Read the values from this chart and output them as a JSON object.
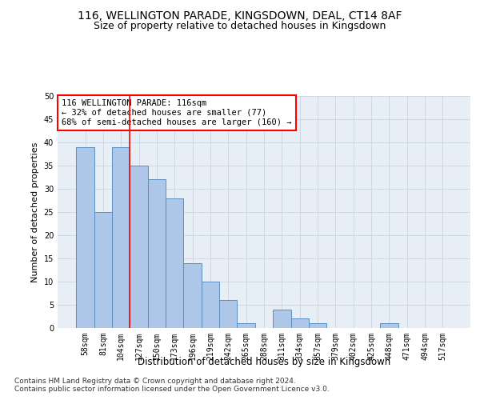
{
  "title1": "116, WELLINGTON PARADE, KINGSDOWN, DEAL, CT14 8AF",
  "title2": "Size of property relative to detached houses in Kingsdown",
  "xlabel": "Distribution of detached houses by size in Kingsdown",
  "ylabel": "Number of detached properties",
  "categories": [
    "58sqm",
    "81sqm",
    "104sqm",
    "127sqm",
    "150sqm",
    "173sqm",
    "196sqm",
    "219sqm",
    "242sqm",
    "265sqm",
    "288sqm",
    "311sqm",
    "334sqm",
    "357sqm",
    "379sqm",
    "402sqm",
    "425sqm",
    "448sqm",
    "471sqm",
    "494sqm",
    "517sqm"
  ],
  "values": [
    39,
    25,
    39,
    35,
    32,
    28,
    14,
    10,
    6,
    1,
    0,
    4,
    2,
    1,
    0,
    0,
    0,
    1,
    0,
    0,
    0
  ],
  "bar_color": "#aec6e8",
  "bar_edge_color": "#5a8fc0",
  "annotation_text": "116 WELLINGTON PARADE: 116sqm\n← 32% of detached houses are smaller (77)\n68% of semi-detached houses are larger (160) →",
  "annotation_box_color": "white",
  "annotation_box_edge": "red",
  "vline_color": "red",
  "vline_x": 2.5,
  "ylim": [
    0,
    50
  ],
  "yticks": [
    0,
    5,
    10,
    15,
    20,
    25,
    30,
    35,
    40,
    45,
    50
  ],
  "grid_color": "#c8d4e3",
  "bg_color": "#e8eef5",
  "footer1": "Contains HM Land Registry data © Crown copyright and database right 2024.",
  "footer2": "Contains public sector information licensed under the Open Government Licence v3.0.",
  "title1_fontsize": 10,
  "title2_fontsize": 9,
  "xlabel_fontsize": 8.5,
  "ylabel_fontsize": 8,
  "tick_fontsize": 7,
  "annot_fontsize": 7.5,
  "footer_fontsize": 6.5
}
